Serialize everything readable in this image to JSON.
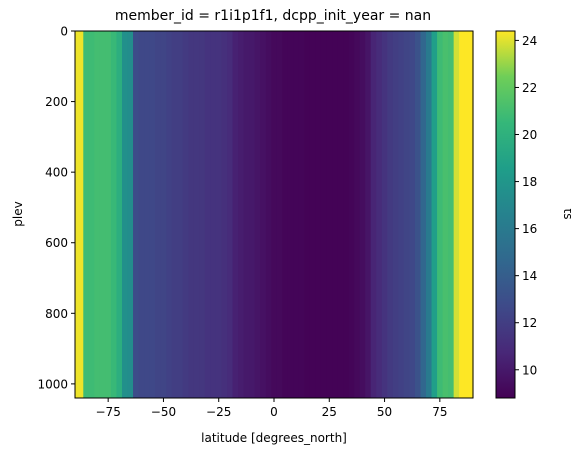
{
  "chart_data": {
    "type": "heatmap",
    "title": "member_id = r1i1p1f1, dcpp_init_year = nan",
    "xlabel": "latitude [degrees_north]",
    "ylabel": "plev",
    "colorbar_label": "ts",
    "xlim": [
      -90,
      90
    ],
    "ylim": [
      1040,
      0
    ],
    "y_inverted": true,
    "x_ticks": [
      -75,
      -50,
      -25,
      0,
      25,
      50,
      75
    ],
    "x_tick_labels": [
      "−75",
      "−50",
      "−25",
      "0",
      "25",
      "50",
      "75"
    ],
    "y_ticks": [
      0,
      200,
      400,
      600,
      800,
      1000
    ],
    "y_tick_labels": [
      "0",
      "200",
      "400",
      "600",
      "800",
      "1000"
    ],
    "colorbar_ticks": [
      10,
      12,
      14,
      16,
      18,
      20,
      22,
      24
    ],
    "colorbar_tick_labels": [
      "10",
      "12",
      "14",
      "16",
      "18",
      "20",
      "22",
      "24"
    ],
    "vmin": 8.8,
    "vmax": 24.4,
    "colormap": "viridis",
    "varies_along": "x",
    "x": [
      -87.5,
      -85,
      -82.5,
      -80,
      -77.5,
      -75,
      -72.5,
      -70,
      -67.5,
      -65,
      -62.5,
      -60,
      -57.5,
      -55,
      -52.5,
      -50,
      -47.5,
      -45,
      -42.5,
      -40,
      -37.5,
      -35,
      -32.5,
      -30,
      -27.5,
      -25,
      -22.5,
      -20,
      -17.5,
      -15,
      -12.5,
      -10,
      -7.5,
      -5,
      -2.5,
      0,
      2.5,
      5,
      7.5,
      10,
      12.5,
      15,
      17.5,
      20,
      22.5,
      25,
      27.5,
      30,
      32.5,
      35,
      37.5,
      40,
      42.5,
      45,
      47.5,
      50,
      52.5,
      55,
      57.5,
      60,
      62.5,
      65,
      67.5,
      70,
      72.5,
      75,
      77.5,
      80,
      82.5,
      85,
      87.5
    ],
    "values": [
      24.2,
      20.8,
      20.8,
      21.0,
      21.0,
      21.0,
      20.6,
      19.8,
      17.6,
      17.4,
      12.8,
      12.6,
      12.6,
      12.6,
      12.4,
      12.4,
      12.2,
      12.0,
      12.0,
      11.8,
      11.6,
      11.6,
      11.6,
      11.4,
      11.4,
      11.4,
      11.2,
      11.0,
      10.4,
      10.2,
      10.0,
      10.0,
      9.8,
      9.6,
      9.4,
      9.2,
      9.2,
      9.0,
      9.0,
      9.0,
      9.0,
      8.9,
      8.9,
      8.9,
      8.9,
      8.9,
      8.9,
      8.9,
      8.9,
      9.0,
      9.2,
      9.4,
      9.8,
      10.6,
      11.0,
      11.4,
      11.8,
      12.0,
      12.2,
      12.4,
      12.6,
      13.2,
      14.6,
      16.0,
      18.6,
      20.8,
      21.2,
      21.0,
      23.8,
      24.4,
      24.4
    ]
  }
}
